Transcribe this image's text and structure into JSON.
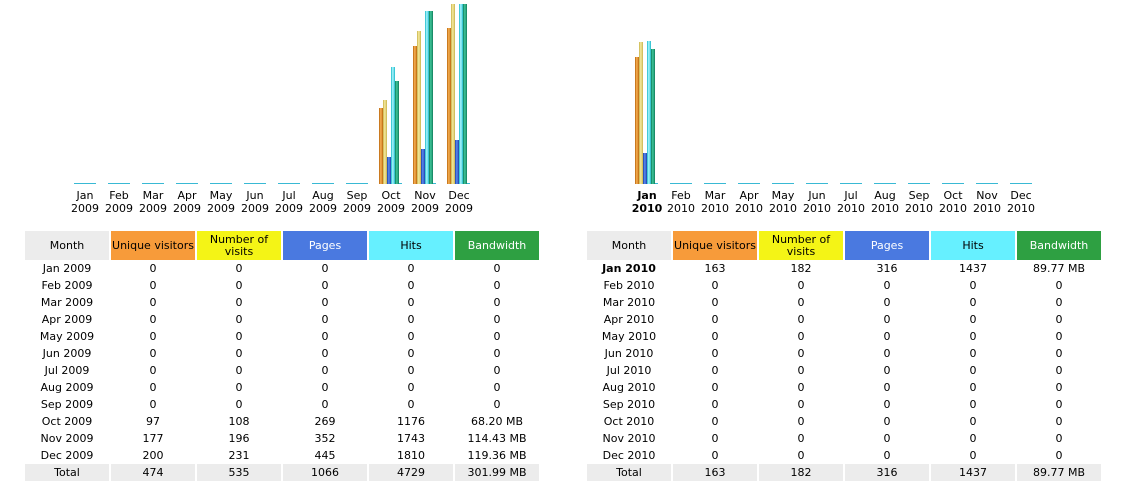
{
  "colors": {
    "unique_visitors": "#f79b3a",
    "number_of_visits": "#f4f416",
    "pages": "#4a79e0",
    "hits": "#66f0ff",
    "bandwidth": "#2ea042",
    "header_gray": "#ececec"
  },
  "headers": {
    "month": "Month",
    "unique_visitors": "Unique visitors",
    "number_of_visits": "Number of visits",
    "pages": "Pages",
    "hits": "Hits",
    "bandwidth": "Bandwidth"
  },
  "panels": [
    {
      "id": "2009",
      "rows": [
        {
          "month_label": "Jan 2009",
          "m": "Jan",
          "y": "2009",
          "unique": "0",
          "visits": "0",
          "pages": "0",
          "hits": "0",
          "bandwidth": "0",
          "bw_mb": 0
        },
        {
          "month_label": "Feb 2009",
          "m": "Feb",
          "y": "2009",
          "unique": "0",
          "visits": "0",
          "pages": "0",
          "hits": "0",
          "bandwidth": "0",
          "bw_mb": 0
        },
        {
          "month_label": "Mar 2009",
          "m": "Mar",
          "y": "2009",
          "unique": "0",
          "visits": "0",
          "pages": "0",
          "hits": "0",
          "bandwidth": "0",
          "bw_mb": 0
        },
        {
          "month_label": "Apr 2009",
          "m": "Apr",
          "y": "2009",
          "unique": "0",
          "visits": "0",
          "pages": "0",
          "hits": "0",
          "bandwidth": "0",
          "bw_mb": 0
        },
        {
          "month_label": "May 2009",
          "m": "May",
          "y": "2009",
          "unique": "0",
          "visits": "0",
          "pages": "0",
          "hits": "0",
          "bandwidth": "0",
          "bw_mb": 0
        },
        {
          "month_label": "Jun 2009",
          "m": "Jun",
          "y": "2009",
          "unique": "0",
          "visits": "0",
          "pages": "0",
          "hits": "0",
          "bandwidth": "0",
          "bw_mb": 0
        },
        {
          "month_label": "Jul 2009",
          "m": "Jul",
          "y": "2009",
          "unique": "0",
          "visits": "0",
          "pages": "0",
          "hits": "0",
          "bandwidth": "0",
          "bw_mb": 0
        },
        {
          "month_label": "Aug 2009",
          "m": "Aug",
          "y": "2009",
          "unique": "0",
          "visits": "0",
          "pages": "0",
          "hits": "0",
          "bandwidth": "0",
          "bw_mb": 0
        },
        {
          "month_label": "Sep 2009",
          "m": "Sep",
          "y": "2009",
          "unique": "0",
          "visits": "0",
          "pages": "0",
          "hits": "0",
          "bandwidth": "0",
          "bw_mb": 0
        },
        {
          "month_label": "Oct 2009",
          "m": "Oct",
          "y": "2009",
          "unique": "97",
          "visits": "108",
          "pages": "269",
          "hits": "1176",
          "bandwidth": "68.20 MB",
          "bw_mb": 68.2
        },
        {
          "month_label": "Nov 2009",
          "m": "Nov",
          "y": "2009",
          "unique": "177",
          "visits": "196",
          "pages": "352",
          "hits": "1743",
          "bandwidth": "114.43 MB",
          "bw_mb": 114.43
        },
        {
          "month_label": "Dec 2009",
          "m": "Dec",
          "y": "2009",
          "unique": "200",
          "visits": "231",
          "pages": "445",
          "hits": "1810",
          "bandwidth": "119.36 MB",
          "bw_mb": 119.36
        }
      ],
      "total": {
        "label": "Total",
        "unique": "474",
        "visits": "535",
        "pages": "1066",
        "hits": "4729",
        "bandwidth": "301.99 MB"
      },
      "current_index": -1
    },
    {
      "id": "2010",
      "rows": [
        {
          "month_label": "Jan 2010",
          "m": "Jan",
          "y": "2010",
          "unique": "163",
          "visits": "182",
          "pages": "316",
          "hits": "1437",
          "bandwidth": "89.77 MB",
          "bw_mb": 89.77
        },
        {
          "month_label": "Feb 2010",
          "m": "Feb",
          "y": "2010",
          "unique": "0",
          "visits": "0",
          "pages": "0",
          "hits": "0",
          "bandwidth": "0",
          "bw_mb": 0
        },
        {
          "month_label": "Mar 2010",
          "m": "Mar",
          "y": "2010",
          "unique": "0",
          "visits": "0",
          "pages": "0",
          "hits": "0",
          "bandwidth": "0",
          "bw_mb": 0
        },
        {
          "month_label": "Apr 2010",
          "m": "Apr",
          "y": "2010",
          "unique": "0",
          "visits": "0",
          "pages": "0",
          "hits": "0",
          "bandwidth": "0",
          "bw_mb": 0
        },
        {
          "month_label": "May 2010",
          "m": "May",
          "y": "2010",
          "unique": "0",
          "visits": "0",
          "pages": "0",
          "hits": "0",
          "bandwidth": "0",
          "bw_mb": 0
        },
        {
          "month_label": "Jun 2010",
          "m": "Jun",
          "y": "2010",
          "unique": "0",
          "visits": "0",
          "pages": "0",
          "hits": "0",
          "bandwidth": "0",
          "bw_mb": 0
        },
        {
          "month_label": "Jul 2010",
          "m": "Jul",
          "y": "2010",
          "unique": "0",
          "visits": "0",
          "pages": "0",
          "hits": "0",
          "bandwidth": "0",
          "bw_mb": 0
        },
        {
          "month_label": "Aug 2010",
          "m": "Aug",
          "y": "2010",
          "unique": "0",
          "visits": "0",
          "pages": "0",
          "hits": "0",
          "bandwidth": "0",
          "bw_mb": 0
        },
        {
          "month_label": "Sep 2010",
          "m": "Sep",
          "y": "2010",
          "unique": "0",
          "visits": "0",
          "pages": "0",
          "hits": "0",
          "bandwidth": "0",
          "bw_mb": 0
        },
        {
          "month_label": "Oct 2010",
          "m": "Oct",
          "y": "2010",
          "unique": "0",
          "visits": "0",
          "pages": "0",
          "hits": "0",
          "bandwidth": "0",
          "bw_mb": 0
        },
        {
          "month_label": "Nov 2010",
          "m": "Nov",
          "y": "2010",
          "unique": "0",
          "visits": "0",
          "pages": "0",
          "hits": "0",
          "bandwidth": "0",
          "bw_mb": 0
        },
        {
          "month_label": "Dec 2010",
          "m": "Dec",
          "y": "2010",
          "unique": "0",
          "visits": "0",
          "pages": "0",
          "hits": "0",
          "bandwidth": "0",
          "bw_mb": 0
        }
      ],
      "total": {
        "label": "Total",
        "unique": "163",
        "visits": "182",
        "pages": "316",
        "hits": "1437",
        "bandwidth": "89.77 MB"
      },
      "current_index": 0
    }
  ]
}
